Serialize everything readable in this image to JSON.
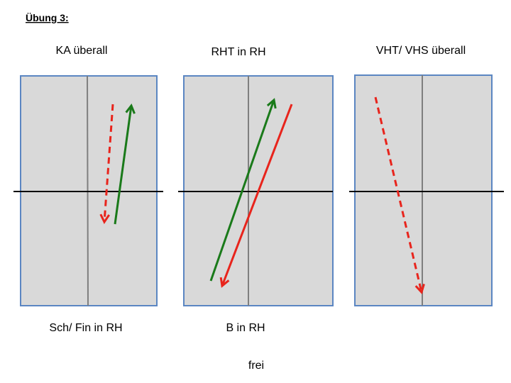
{
  "header": {
    "title": "Übung 3:"
  },
  "panels": [
    {
      "top_label": "KA überall",
      "bottom_label": "Sch/ Fin in RH"
    },
    {
      "top_label": "RHT in RH",
      "bottom_label": "B in RH"
    },
    {
      "top_label": "VHT/ VHS überall"
    }
  ],
  "footer": {
    "label": "frei"
  }
}
